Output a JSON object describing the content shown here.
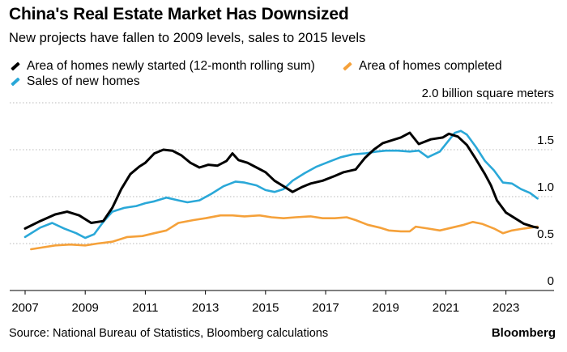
{
  "header": {
    "title": "China's Real Estate Market Has Downsized",
    "subtitle": "New projects have fallen to 2009 levels, sales to 2015 levels"
  },
  "footer": {
    "source": "Source: National Bureau of Statistics, Bloomberg calculations",
    "brand": "Bloomberg"
  },
  "chart_data": {
    "type": "line",
    "title": "China's Real Estate Market Has Downsized",
    "subtitle": "New projects have fallen to 2009 levels, sales to 2015 levels",
    "ylabel": "2.0 billion square meters",
    "xlabel": "",
    "ylim": [
      0,
      2.0
    ],
    "xlim": [
      2007,
      2024.6
    ],
    "y_ticks": [
      0,
      0.5,
      1.0,
      1.5
    ],
    "y_tick_labels": [
      "0",
      "0.5",
      "1.0",
      "1.5"
    ],
    "x_ticks": [
      2007,
      2009,
      2011,
      2013,
      2015,
      2017,
      2019,
      2021,
      2023
    ],
    "x_tick_labels": [
      "2007",
      "2009",
      "2011",
      "2013",
      "2015",
      "2017",
      "2019",
      "2021",
      "2023"
    ],
    "grid": true,
    "legend_position": "top-left",
    "series": [
      {
        "name": "Area of homes newly started (12-month rolling sum)",
        "color": "#000000",
        "points": [
          [
            2007.0,
            0.66
          ],
          [
            2007.5,
            0.74
          ],
          [
            2008.0,
            0.81
          ],
          [
            2008.4,
            0.84
          ],
          [
            2008.8,
            0.8
          ],
          [
            2009.2,
            0.72
          ],
          [
            2009.6,
            0.74
          ],
          [
            2009.9,
            0.88
          ],
          [
            2010.2,
            1.08
          ],
          [
            2010.5,
            1.24
          ],
          [
            2010.8,
            1.32
          ],
          [
            2011.0,
            1.36
          ],
          [
            2011.3,
            1.46
          ],
          [
            2011.6,
            1.5
          ],
          [
            2011.9,
            1.49
          ],
          [
            2012.2,
            1.44
          ],
          [
            2012.5,
            1.36
          ],
          [
            2012.8,
            1.31
          ],
          [
            2013.1,
            1.34
          ],
          [
            2013.4,
            1.33
          ],
          [
            2013.7,
            1.38
          ],
          [
            2013.9,
            1.46
          ],
          [
            2014.1,
            1.39
          ],
          [
            2014.4,
            1.36
          ],
          [
            2014.7,
            1.31
          ],
          [
            2015.0,
            1.26
          ],
          [
            2015.3,
            1.17
          ],
          [
            2015.6,
            1.11
          ],
          [
            2015.9,
            1.05
          ],
          [
            2016.2,
            1.1
          ],
          [
            2016.5,
            1.14
          ],
          [
            2016.9,
            1.17
          ],
          [
            2017.3,
            1.22
          ],
          [
            2017.6,
            1.26
          ],
          [
            2018.0,
            1.29
          ],
          [
            2018.3,
            1.41
          ],
          [
            2018.6,
            1.5
          ],
          [
            2018.9,
            1.57
          ],
          [
            2019.2,
            1.6
          ],
          [
            2019.5,
            1.63
          ],
          [
            2019.8,
            1.68
          ],
          [
            2020.1,
            1.56
          ],
          [
            2020.5,
            1.61
          ],
          [
            2020.9,
            1.63
          ],
          [
            2021.1,
            1.67
          ],
          [
            2021.4,
            1.64
          ],
          [
            2021.7,
            1.55
          ],
          [
            2022.0,
            1.4
          ],
          [
            2022.3,
            1.24
          ],
          [
            2022.5,
            1.12
          ],
          [
            2022.7,
            0.96
          ],
          [
            2023.0,
            0.83
          ],
          [
            2023.3,
            0.77
          ],
          [
            2023.6,
            0.71
          ],
          [
            2023.9,
            0.68
          ],
          [
            2024.05,
            0.67
          ]
        ]
      },
      {
        "name": "Area of homes completed",
        "color": "#f5a13a",
        "points": [
          [
            2007.2,
            0.44
          ],
          [
            2007.6,
            0.46
          ],
          [
            2008.0,
            0.48
          ],
          [
            2008.5,
            0.49
          ],
          [
            2009.0,
            0.48
          ],
          [
            2009.4,
            0.5
          ],
          [
            2009.9,
            0.52
          ],
          [
            2010.4,
            0.57
          ],
          [
            2010.9,
            0.58
          ],
          [
            2011.3,
            0.61
          ],
          [
            2011.7,
            0.64
          ],
          [
            2012.1,
            0.72
          ],
          [
            2012.6,
            0.75
          ],
          [
            2013.0,
            0.77
          ],
          [
            2013.5,
            0.8
          ],
          [
            2013.9,
            0.8
          ],
          [
            2014.3,
            0.79
          ],
          [
            2014.8,
            0.8
          ],
          [
            2015.2,
            0.78
          ],
          [
            2015.6,
            0.77
          ],
          [
            2016.0,
            0.78
          ],
          [
            2016.5,
            0.79
          ],
          [
            2016.9,
            0.77
          ],
          [
            2017.3,
            0.77
          ],
          [
            2017.7,
            0.78
          ],
          [
            2018.0,
            0.75
          ],
          [
            2018.4,
            0.7
          ],
          [
            2018.8,
            0.67
          ],
          [
            2019.1,
            0.64
          ],
          [
            2019.5,
            0.63
          ],
          [
            2019.8,
            0.63
          ],
          [
            2020.0,
            0.68
          ],
          [
            2020.4,
            0.66
          ],
          [
            2020.8,
            0.64
          ],
          [
            2021.2,
            0.67
          ],
          [
            2021.6,
            0.7
          ],
          [
            2021.9,
            0.73
          ],
          [
            2022.2,
            0.71
          ],
          [
            2022.6,
            0.66
          ],
          [
            2022.9,
            0.61
          ],
          [
            2023.2,
            0.64
          ],
          [
            2023.6,
            0.66
          ],
          [
            2024.05,
            0.68
          ]
        ]
      },
      {
        "name": "Sales of new homes",
        "color": "#2aa8d8",
        "points": [
          [
            2007.0,
            0.57
          ],
          [
            2007.5,
            0.67
          ],
          [
            2007.9,
            0.72
          ],
          [
            2008.3,
            0.66
          ],
          [
            2008.7,
            0.61
          ],
          [
            2009.0,
            0.56
          ],
          [
            2009.3,
            0.6
          ],
          [
            2009.6,
            0.73
          ],
          [
            2009.9,
            0.84
          ],
          [
            2010.3,
            0.88
          ],
          [
            2010.7,
            0.9
          ],
          [
            2011.0,
            0.93
          ],
          [
            2011.3,
            0.95
          ],
          [
            2011.7,
            0.99
          ],
          [
            2012.1,
            0.96
          ],
          [
            2012.4,
            0.94
          ],
          [
            2012.8,
            0.96
          ],
          [
            2013.2,
            1.03
          ],
          [
            2013.6,
            1.11
          ],
          [
            2014.0,
            1.16
          ],
          [
            2014.3,
            1.15
          ],
          [
            2014.7,
            1.12
          ],
          [
            2015.0,
            1.07
          ],
          [
            2015.3,
            1.05
          ],
          [
            2015.6,
            1.08
          ],
          [
            2015.9,
            1.17
          ],
          [
            2016.3,
            1.25
          ],
          [
            2016.7,
            1.32
          ],
          [
            2017.1,
            1.37
          ],
          [
            2017.5,
            1.42
          ],
          [
            2017.9,
            1.45
          ],
          [
            2018.3,
            1.46
          ],
          [
            2018.7,
            1.48
          ],
          [
            2019.0,
            1.49
          ],
          [
            2019.4,
            1.49
          ],
          [
            2019.8,
            1.48
          ],
          [
            2020.1,
            1.49
          ],
          [
            2020.4,
            1.42
          ],
          [
            2020.8,
            1.48
          ],
          [
            2021.1,
            1.6
          ],
          [
            2021.3,
            1.68
          ],
          [
            2021.5,
            1.7
          ],
          [
            2021.7,
            1.66
          ],
          [
            2022.0,
            1.53
          ],
          [
            2022.3,
            1.38
          ],
          [
            2022.6,
            1.28
          ],
          [
            2022.9,
            1.15
          ],
          [
            2023.2,
            1.14
          ],
          [
            2023.5,
            1.08
          ],
          [
            2023.8,
            1.04
          ],
          [
            2024.05,
            0.98
          ]
        ]
      }
    ]
  }
}
